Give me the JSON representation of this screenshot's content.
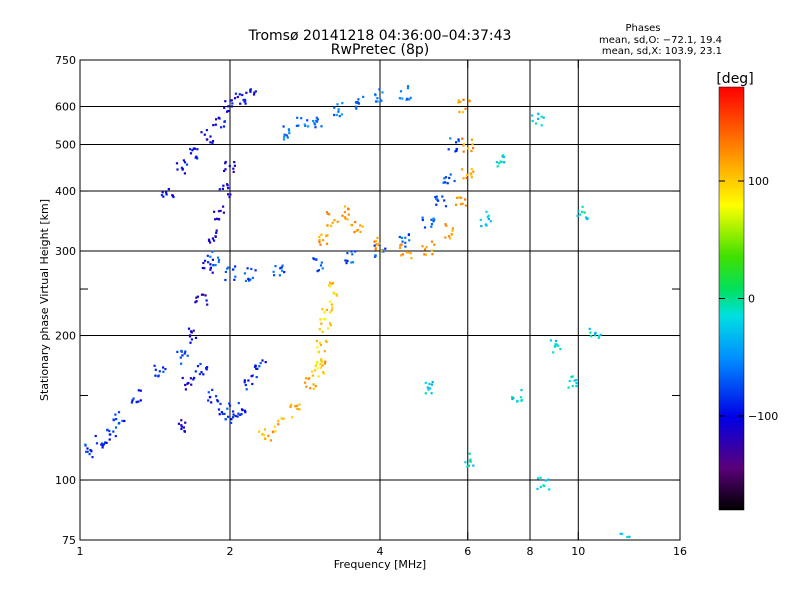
{
  "chart_data": {
    "type": "scatter",
    "title_line1": "Tromsø 20141218 04:36:00–04:37:43",
    "title_line2": "RwPretec (8p)",
    "xlabel": "Frequency [MHz]",
    "ylabel": "Stationary phase Virtual Height [km]",
    "x_scale": "log2",
    "y_scale": "log",
    "xlim": [
      1,
      16
    ],
    "ylim": [
      75,
      750
    ],
    "x_ticks": [
      1,
      2,
      4,
      6,
      8,
      10,
      16
    ],
    "x_tick_labels": [
      "1",
      "2",
      "4",
      "6",
      "8",
      "10",
      "16"
    ],
    "y_ticks": [
      75,
      100,
      200,
      300,
      400,
      500,
      600,
      750
    ],
    "y_tick_labels": [
      "75",
      "100",
      "200",
      "300",
      "400",
      "500",
      "600",
      "750"
    ],
    "y_minor_ticks": [
      150,
      250
    ],
    "x_gridlines": [
      2,
      4,
      6,
      8,
      10
    ],
    "y_gridlines": [
      100,
      200,
      300,
      400,
      500,
      600
    ],
    "phase_stats": {
      "header": "Phases",
      "line_o": "mean, sd,O: −72.1, 19.4",
      "line_x": "mean, sd,X: 103.9, 23.1"
    },
    "colorbar": {
      "label": "[deg]",
      "range": [
        -180,
        180
      ],
      "ticks": [
        100,
        0,
        -100
      ],
      "tick_labels": [
        "100",
        "0",
        "−100"
      ]
    },
    "series": [
      {
        "name": "Low-height blue/cyan trace (100–200 km)",
        "color_phase": -85,
        "points": [
          [
            1.05,
            115
          ],
          [
            1.1,
            120
          ],
          [
            1.15,
            125
          ],
          [
            1.2,
            135
          ],
          [
            1.3,
            150
          ],
          [
            1.45,
            170
          ],
          [
            1.6,
            180
          ],
          [
            1.75,
            170
          ],
          [
            1.85,
            150
          ],
          [
            1.95,
            140
          ],
          [
            2.0,
            135
          ],
          [
            2.1,
            140
          ],
          [
            2.2,
            160
          ],
          [
            2.3,
            175
          ]
        ]
      },
      {
        "name": "Blue E/F1 column (120–400 km)",
        "color_phase": -110,
        "points": [
          [
            1.6,
            130
          ],
          [
            1.65,
            160
          ],
          [
            1.7,
            200
          ],
          [
            1.75,
            240
          ],
          [
            1.8,
            280
          ],
          [
            1.85,
            320
          ],
          [
            1.9,
            360
          ],
          [
            1.95,
            400
          ],
          [
            2.0,
            450
          ]
        ]
      },
      {
        "name": "Blue high trace (400–650 km)",
        "color_phase": -100,
        "points": [
          [
            1.5,
            400
          ],
          [
            1.6,
            450
          ],
          [
            1.7,
            480
          ],
          [
            1.8,
            520
          ],
          [
            1.9,
            560
          ],
          [
            2.0,
            600
          ],
          [
            2.1,
            620
          ],
          [
            2.2,
            630
          ]
        ]
      },
      {
        "name": "Cyan F-layer ordinary trace",
        "color_phase": -72,
        "points": [
          [
            1.85,
            290
          ],
          [
            2.0,
            270
          ],
          [
            2.2,
            268
          ],
          [
            2.5,
            272
          ],
          [
            3.0,
            282
          ],
          [
            3.5,
            290
          ],
          [
            4.0,
            300
          ],
          [
            4.5,
            315
          ],
          [
            5.0,
            345
          ],
          [
            5.3,
            380
          ],
          [
            5.5,
            430
          ],
          [
            5.6,
            500
          ]
        ]
      },
      {
        "name": "Cyan high-altitude band (~520–650 km)",
        "color_phase": -60,
        "points": [
          [
            2.6,
            530
          ],
          [
            2.8,
            550
          ],
          [
            3.0,
            560
          ],
          [
            3.3,
            590
          ],
          [
            3.6,
            610
          ],
          [
            4.0,
            630
          ],
          [
            4.5,
            640
          ]
        ]
      },
      {
        "name": "Orange/red extraordinary lower trace",
        "color_phase": 110,
        "points": [
          [
            2.35,
            125
          ],
          [
            2.5,
            130
          ],
          [
            2.7,
            140
          ],
          [
            2.9,
            160
          ],
          [
            3.05,
            175
          ]
        ]
      },
      {
        "name": "Yellow/orange extraordinary mid trace",
        "color_phase": 95,
        "points": [
          [
            3.0,
            170
          ],
          [
            3.05,
            190
          ],
          [
            3.1,
            210
          ],
          [
            3.15,
            230
          ],
          [
            3.2,
            250
          ]
        ]
      },
      {
        "name": "Orange extraordinary F trace",
        "color_phase": 120,
        "points": [
          [
            3.1,
            320
          ],
          [
            3.2,
            350
          ],
          [
            3.4,
            360
          ],
          [
            3.6,
            340
          ],
          [
            4.0,
            310
          ],
          [
            4.5,
            300
          ],
          [
            5.0,
            305
          ],
          [
            5.5,
            330
          ],
          [
            5.8,
            380
          ],
          [
            6.0,
            430
          ],
          [
            6.0,
            500
          ],
          [
            5.9,
            600
          ]
        ]
      },
      {
        "name": "Scattered outliers",
        "color_phase": -20,
        "points": [
          [
            6.5,
            350
          ],
          [
            7.0,
            460
          ],
          [
            8.3,
            560
          ],
          [
            8.5,
            98
          ],
          [
            9.8,
            160
          ],
          [
            10.2,
            360
          ],
          [
            10.8,
            200
          ],
          [
            12.5,
            75
          ],
          [
            6.0,
            110
          ],
          [
            5.0,
            155
          ],
          [
            7.5,
            150
          ],
          [
            9.0,
            190
          ]
        ]
      }
    ]
  }
}
